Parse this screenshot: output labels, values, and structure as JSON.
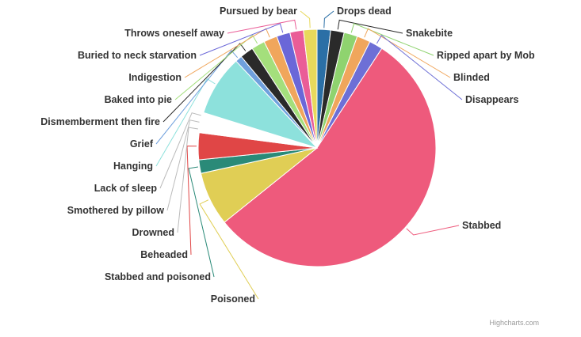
{
  "chart_data": {
    "type": "pie",
    "title": "",
    "slices": [
      {
        "label": "Drops dead",
        "value": 1,
        "color": "#2b6fa6"
      },
      {
        "label": "Snakebite",
        "value": 1,
        "color": "#2a2a2a"
      },
      {
        "label": "Ripped apart by Mob",
        "value": 1,
        "color": "#8fd36f"
      },
      {
        "label": "Blinded",
        "value": 1,
        "color": "#f0a65c"
      },
      {
        "label": "Disappears",
        "value": 1,
        "color": "#6d6fd6"
      },
      {
        "label": "Stabbed",
        "value": 30,
        "color": "#ee5a7c"
      },
      {
        "label": "Poisoned",
        "value": 4,
        "color": "#e0ce55"
      },
      {
        "label": "Stabbed and poisoned",
        "value": 1,
        "color": "#2a8a78"
      },
      {
        "label": "Beheaded",
        "value": 2,
        "color": "#e04646"
      },
      {
        "label": "Drowned",
        "value": 0.5,
        "color": "#ffffff"
      },
      {
        "label": "Smothered by pillow",
        "value": 0.5,
        "color": "#ffffff"
      },
      {
        "label": "Lack of sleep",
        "value": 0.5,
        "color": "#ffffff"
      },
      {
        "label": "Hanging",
        "value": 4.5,
        "color": "#8de1dc"
      },
      {
        "label": "Grief",
        "value": 0.5,
        "color": "#6fa0dd"
      },
      {
        "label": "Dismemberment then fire",
        "value": 1,
        "color": "#2a2a2a"
      },
      {
        "label": "Baked into pie",
        "value": 1,
        "color": "#a4df7c"
      },
      {
        "label": "Indigestion",
        "value": 1,
        "color": "#f0a65c"
      },
      {
        "label": "Buried to neck starvation",
        "value": 1,
        "color": "#6a67d8"
      },
      {
        "label": "Throws oneself away",
        "value": 1,
        "color": "#ea5d97"
      },
      {
        "label": "Pursued by bear",
        "value": 1,
        "color": "#e8d95c"
      }
    ]
  },
  "credit": "Highcharts.com"
}
